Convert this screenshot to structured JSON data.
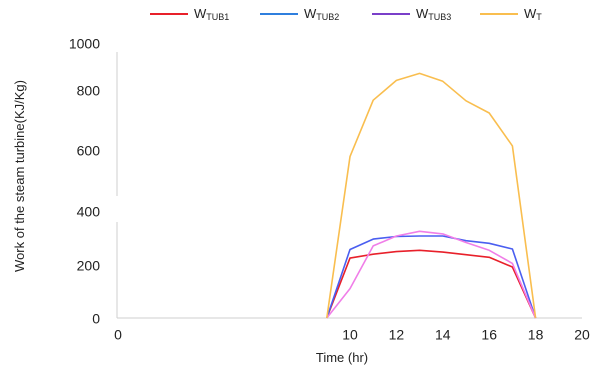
{
  "chart_data": {
    "type": "line",
    "title": "",
    "xlabel": "Time (hr)",
    "ylabel": "Work of the steam turbine(KJ/Kg)",
    "xlim": [
      0,
      20
    ],
    "x_ticks": [
      "0",
      "10",
      "12",
      "14",
      "16",
      "18",
      "20"
    ],
    "y_ticks_upper": [
      "400",
      "600",
      "800",
      "1000"
    ],
    "y_ticks_lower": [
      "0",
      "200"
    ],
    "y_axis_break": true,
    "grid": false,
    "legend_position": "top",
    "series": [
      {
        "name": "W_TUB1",
        "legend_main": "W",
        "legend_sub": "TUB1",
        "color": "#e8202a",
        "x": [
          9,
          10,
          11,
          12,
          13,
          14,
          15,
          16,
          17,
          18
        ],
        "y": [
          0,
          215,
          230,
          240,
          245,
          238,
          228,
          218,
          182,
          0
        ]
      },
      {
        "name": "W_TUB2",
        "legend_main": "W",
        "legend_sub": "TUB2",
        "color": "#4a5ef0",
        "x": [
          9,
          10,
          11,
          12,
          13,
          14,
          15,
          16,
          17,
          18
        ],
        "y": [
          0,
          248,
          288,
          298,
          300,
          300,
          282,
          272,
          250,
          0
        ]
      },
      {
        "name": "W_TUB3",
        "legend_main": "W",
        "legend_sub": "TUB3",
        "color": "#f07ee8",
        "x": [
          9,
          10,
          11,
          12,
          13,
          14,
          15,
          16,
          17,
          18
        ],
        "y": [
          0,
          105,
          262,
          300,
          318,
          308,
          275,
          245,
          195,
          0
        ]
      },
      {
        "name": "W_T",
        "legend_main": "W",
        "legend_sub": "T",
        "color": "#f9be4f",
        "x": [
          9,
          10,
          11,
          12,
          13,
          14,
          15,
          16,
          17,
          18
        ],
        "y": [
          0,
          575,
          760,
          825,
          848,
          822,
          758,
          718,
          610,
          0
        ]
      }
    ],
    "legend_line_colors": [
      "#e8202a",
      "#2f7fde",
      "#7a3fc9",
      "#f9be4f"
    ]
  }
}
